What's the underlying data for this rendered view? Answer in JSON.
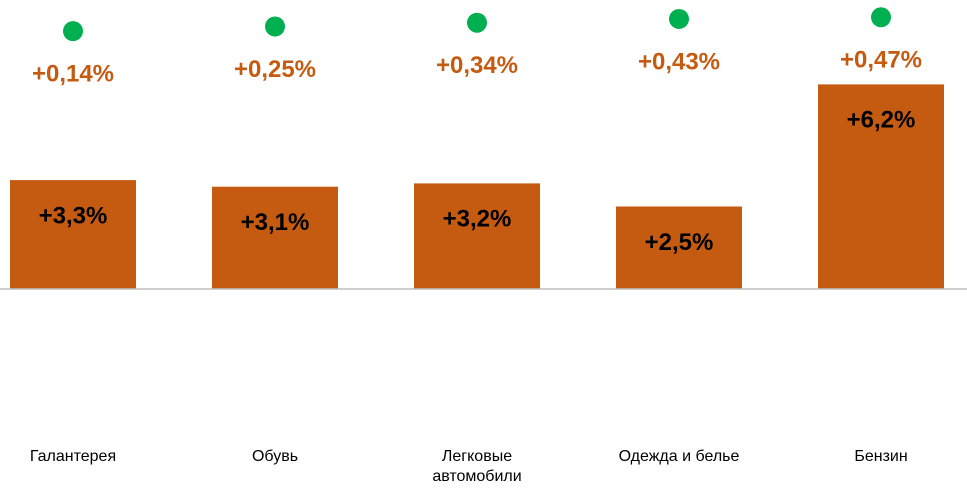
{
  "chart_data": {
    "type": "bar",
    "categories": [
      "Галантерея",
      "Обувь",
      "Легковые автомобили",
      "Одежда и белье",
      "Бензин"
    ],
    "series": [
      {
        "type": "bar",
        "color": "#c55a11",
        "values": [
          3.3,
          3.1,
          3.2,
          2.5,
          6.2
        ],
        "value_labels": [
          "+3,3%",
          "+3,1%",
          "+3,2%",
          "+2,5%",
          "+6,2%"
        ]
      },
      {
        "type": "scatter",
        "axis": "y2",
        "color": "#00b050",
        "label_color": "#c55a11",
        "values": [
          0.14,
          0.25,
          0.34,
          0.43,
          0.47
        ],
        "value_labels": [
          "+0,14%",
          "+0,25%",
          "+0,34%",
          "+0,43%",
          "+0,47%"
        ]
      }
    ],
    "ylim": [
      -4,
      7
    ],
    "y2lim": [
      0,
      0.5
    ]
  }
}
